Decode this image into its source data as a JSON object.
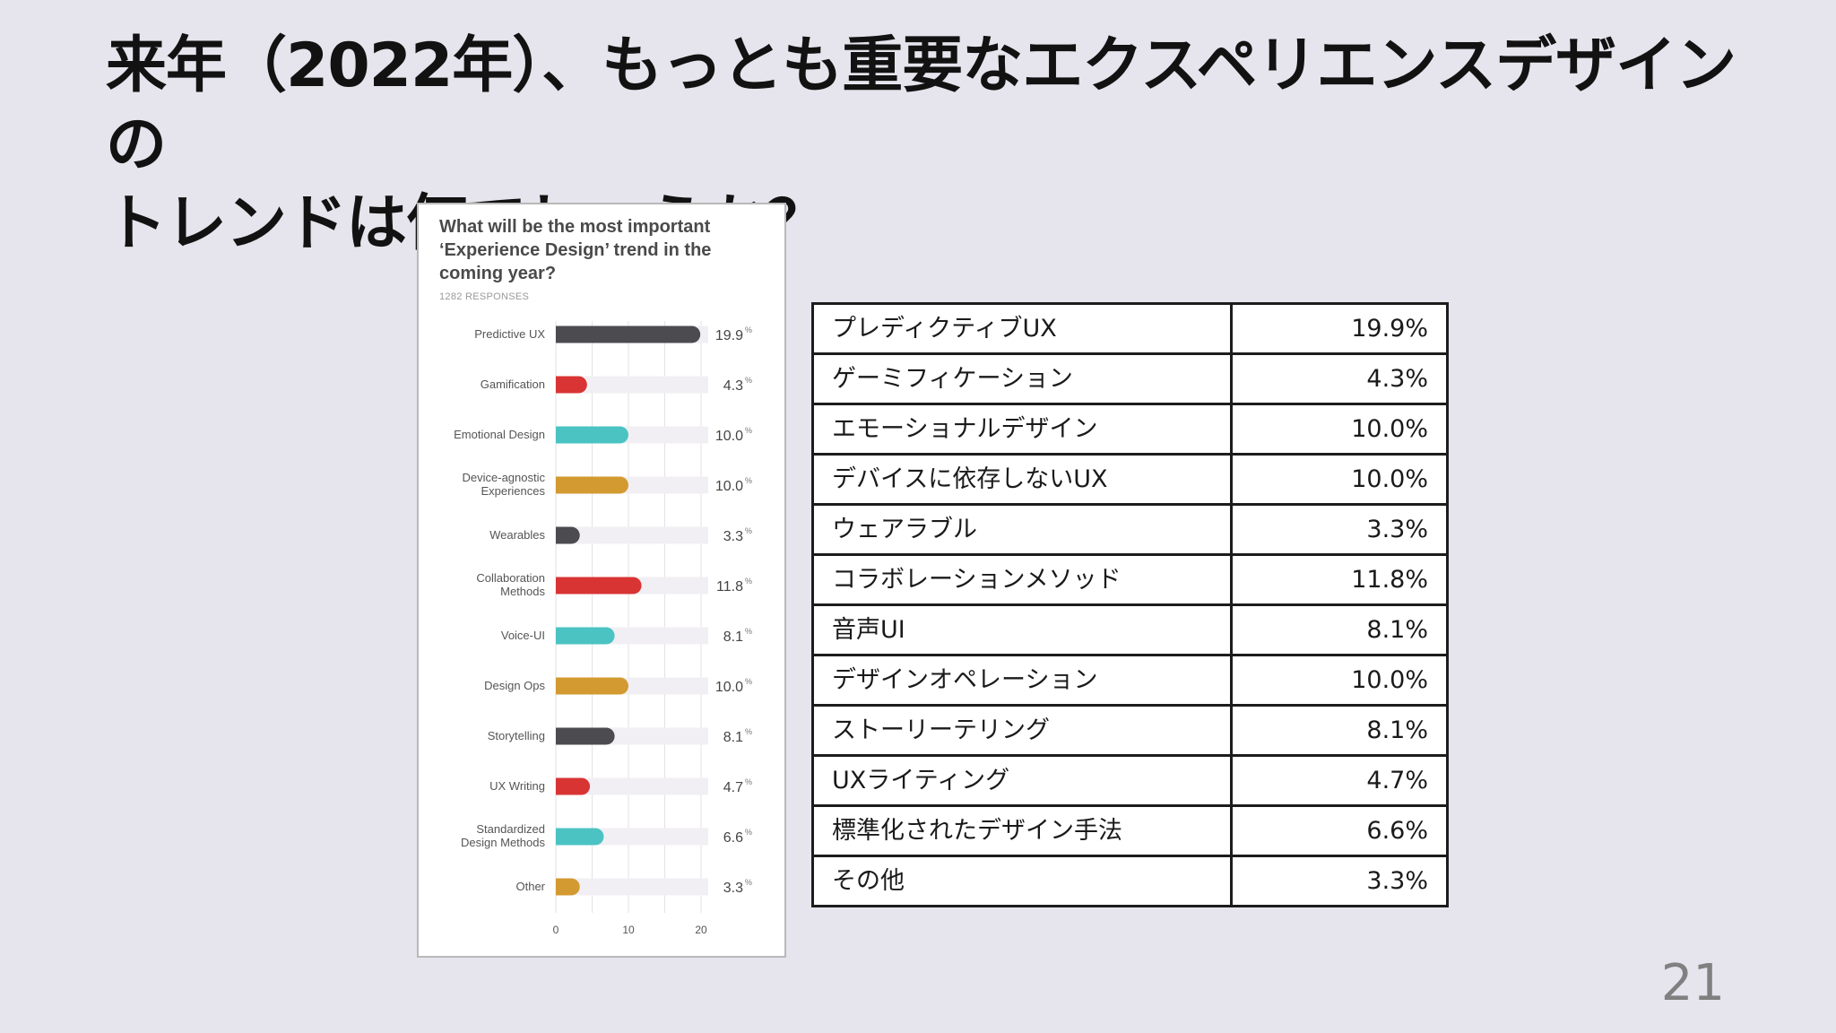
{
  "slide": {
    "title": "来年（2022年）、もっとも重要なエクスペリエンスデザインの\nトレンドは何でしょうか？",
    "page_number": "21"
  },
  "chart_card": {
    "title": "What will be the most important ‘Experience Design’ trend in the coming year?",
    "responses": "1282  RESPONSES"
  },
  "chart_data": {
    "type": "bar",
    "orientation": "horizontal",
    "title": "What will be the most important ‘Experience Design’ trend in the coming year?",
    "subtitle": "1282  RESPONSES",
    "categories": [
      [
        "Predictive UX"
      ],
      [
        "Gamification"
      ],
      [
        "Emotional Design"
      ],
      [
        "Device-agnostic",
        "Experiences"
      ],
      [
        "Wearables"
      ],
      [
        "Collaboration",
        "Methods"
      ],
      [
        "Voice-UI"
      ],
      [
        "Design Ops"
      ],
      [
        "Storytelling"
      ],
      [
        "UX Writing"
      ],
      [
        "Standardized",
        "Design Methods"
      ],
      [
        "Other"
      ]
    ],
    "values": [
      19.9,
      4.3,
      10.0,
      10.0,
      3.3,
      11.8,
      8.1,
      10.0,
      8.1,
      4.7,
      6.6,
      3.3
    ],
    "value_labels": [
      "19.9",
      "4.3",
      "10.0",
      "10.0",
      "3.3",
      "11.8",
      "8.1",
      "10.0",
      "8.1",
      "4.7",
      "6.6",
      "3.3"
    ],
    "unit": "%",
    "colors": [
      "#4b4b50",
      "#d83434",
      "#4bc3c3",
      "#d29a30",
      "#4b4b50",
      "#d83434",
      "#4bc3c3",
      "#d29a30",
      "#4b4b50",
      "#d83434",
      "#4bc3c3",
      "#d29a30"
    ],
    "track_color": "#f1eff3",
    "grid_color": "#e4e2e6",
    "xlim": [
      0,
      20
    ],
    "xticks": [
      "0",
      "10",
      "20"
    ],
    "xlabel": "",
    "ylabel": "",
    "grid": true,
    "legend": "none"
  },
  "table": {
    "rows": [
      {
        "label": "プレディクティブUX",
        "value": "19.9%"
      },
      {
        "label": "ゲーミフィケーション",
        "value": "4.3%"
      },
      {
        "label": "エモーショナルデザイン",
        "value": "10.0%"
      },
      {
        "label": "デバイスに依存しないUX",
        "value": "10.0%"
      },
      {
        "label": "ウェアラブル",
        "value": "3.3%"
      },
      {
        "label": "コラボレーションメソッド",
        "value": "11.8%"
      },
      {
        "label": "音声UI",
        "value": "8.1%"
      },
      {
        "label": "デザインオペレーション",
        "value": "10.0%"
      },
      {
        "label": "ストーリーテリング",
        "value": "8.1%"
      },
      {
        "label": "UXライティング",
        "value": "4.7%"
      },
      {
        "label": "標準化されたデザイン手法",
        "value": "6.6%"
      },
      {
        "label": "その他",
        "value": "3.3%"
      }
    ]
  }
}
